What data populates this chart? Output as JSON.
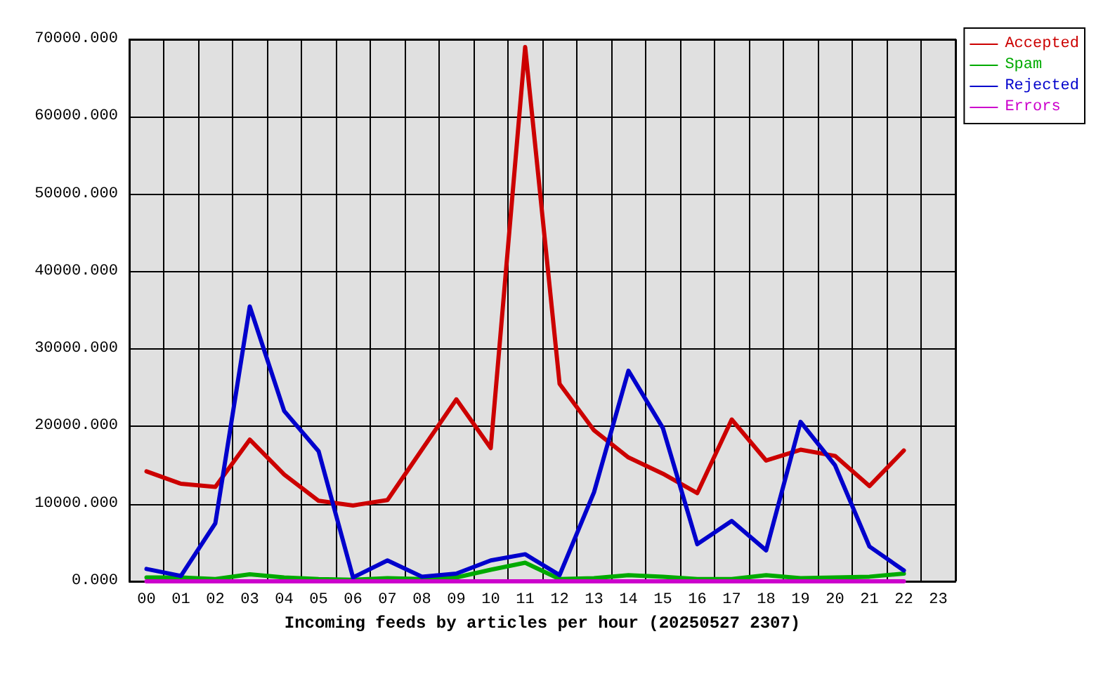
{
  "chart_data": {
    "type": "line",
    "xlabel": "Incoming feeds by articles per hour (20250527 2307)",
    "categories": [
      "00",
      "01",
      "02",
      "03",
      "04",
      "05",
      "06",
      "07",
      "08",
      "09",
      "10",
      "11",
      "12",
      "13",
      "14",
      "15",
      "16",
      "17",
      "18",
      "19",
      "20",
      "21",
      "22",
      "23"
    ],
    "series": [
      {
        "name": "Accepted",
        "color": "#cc0000",
        "values": [
          14200,
          12600,
          12200,
          18300,
          13800,
          10400,
          9800,
          10500,
          17000,
          23500,
          17200,
          69000,
          25500,
          19500,
          16000,
          13900,
          11400,
          20900,
          15600,
          17000,
          16200,
          12300,
          16900,
          null
        ]
      },
      {
        "name": "Spam",
        "color": "#00aa00",
        "values": [
          500,
          500,
          300,
          900,
          500,
          300,
          200,
          400,
          300,
          500,
          1500,
          2400,
          300,
          400,
          800,
          600,
          300,
          300,
          800,
          400,
          500,
          600,
          1000,
          null
        ]
      },
      {
        "name": "Rejected",
        "color": "#0000cc",
        "values": [
          1600,
          700,
          7500,
          35500,
          22000,
          16800,
          500,
          2700,
          600,
          1000,
          2700,
          3500,
          800,
          11500,
          27200,
          19800,
          4800,
          7800,
          4000,
          20600,
          15000,
          4500,
          1400,
          null
        ]
      },
      {
        "name": "Errors",
        "color": "#cc00cc",
        "values": [
          0,
          0,
          0,
          0,
          0,
          0,
          0,
          0,
          0,
          0,
          0,
          0,
          0,
          0,
          0,
          0,
          0,
          0,
          0,
          0,
          0,
          0,
          0,
          null
        ]
      }
    ],
    "ylim": [
      0,
      70000
    ],
    "yticks": [
      {
        "value": 0,
        "label": "0.000"
      },
      {
        "value": 10000,
        "label": "10000.000"
      },
      {
        "value": 20000,
        "label": "20000.000"
      },
      {
        "value": 30000,
        "label": "30000.000"
      },
      {
        "value": 40000,
        "label": "40000.000"
      },
      {
        "value": 50000,
        "label": "50000.000"
      },
      {
        "value": 60000,
        "label": "60000.000"
      },
      {
        "value": 70000,
        "label": "70000.000"
      }
    ],
    "grid": true,
    "legend": "top right"
  }
}
